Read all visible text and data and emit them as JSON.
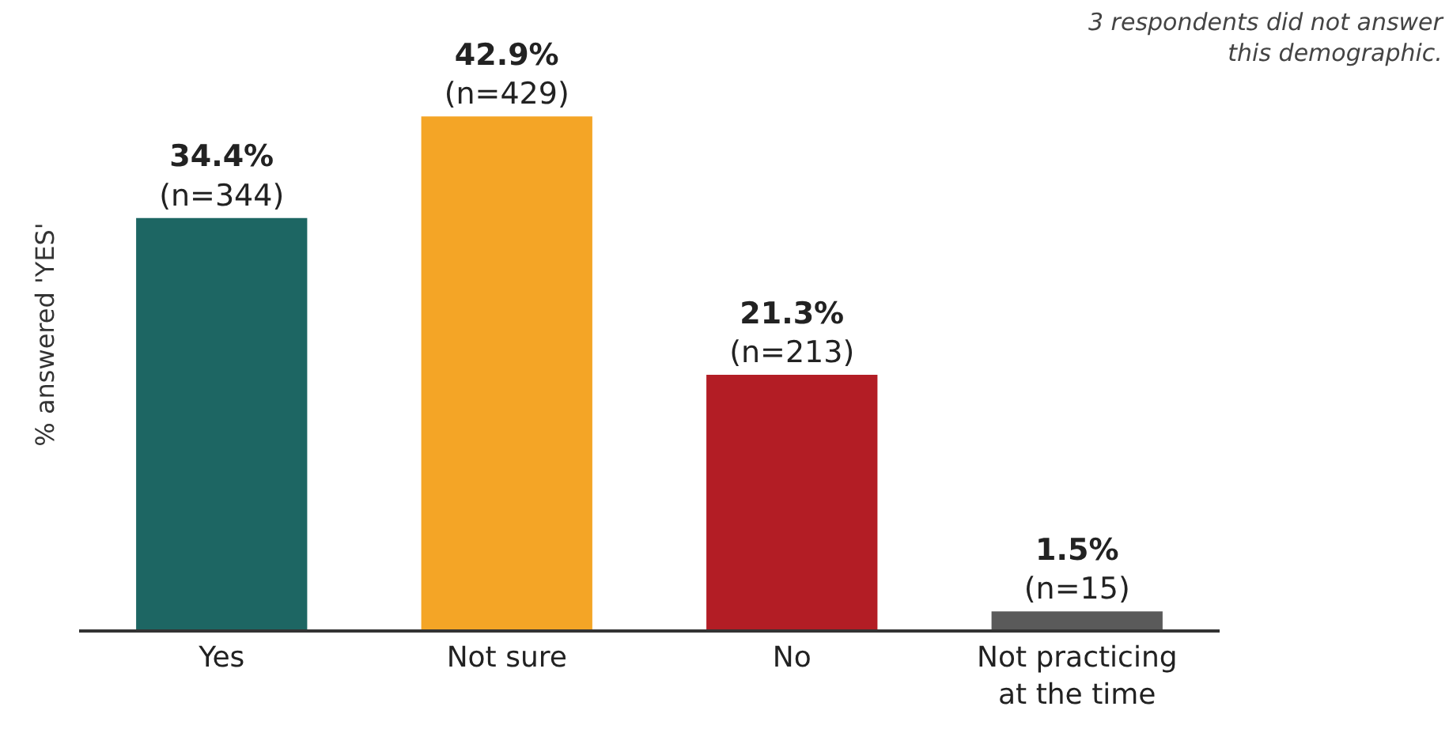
{
  "chart_data": {
    "type": "bar",
    "ylabel": "% answered 'YES'",
    "categories": [
      "Yes",
      "Not sure",
      "No",
      "Not practicing at the time"
    ],
    "values": [
      34.4,
      42.9,
      21.3,
      1.5
    ],
    "colors": [
      "#1d6663",
      "#f4a526",
      "#b31d25",
      "#5a5a5a"
    ],
    "value_labels": [
      "34.4%\n(n=344)",
      "42.9%\n(n=429)",
      "21.3%\n(n=213)",
      "1.5%\n(n=15)"
    ],
    "annotations": [
      "3 respondents did not answer\nthis demographic."
    ],
    "grid": false
  }
}
